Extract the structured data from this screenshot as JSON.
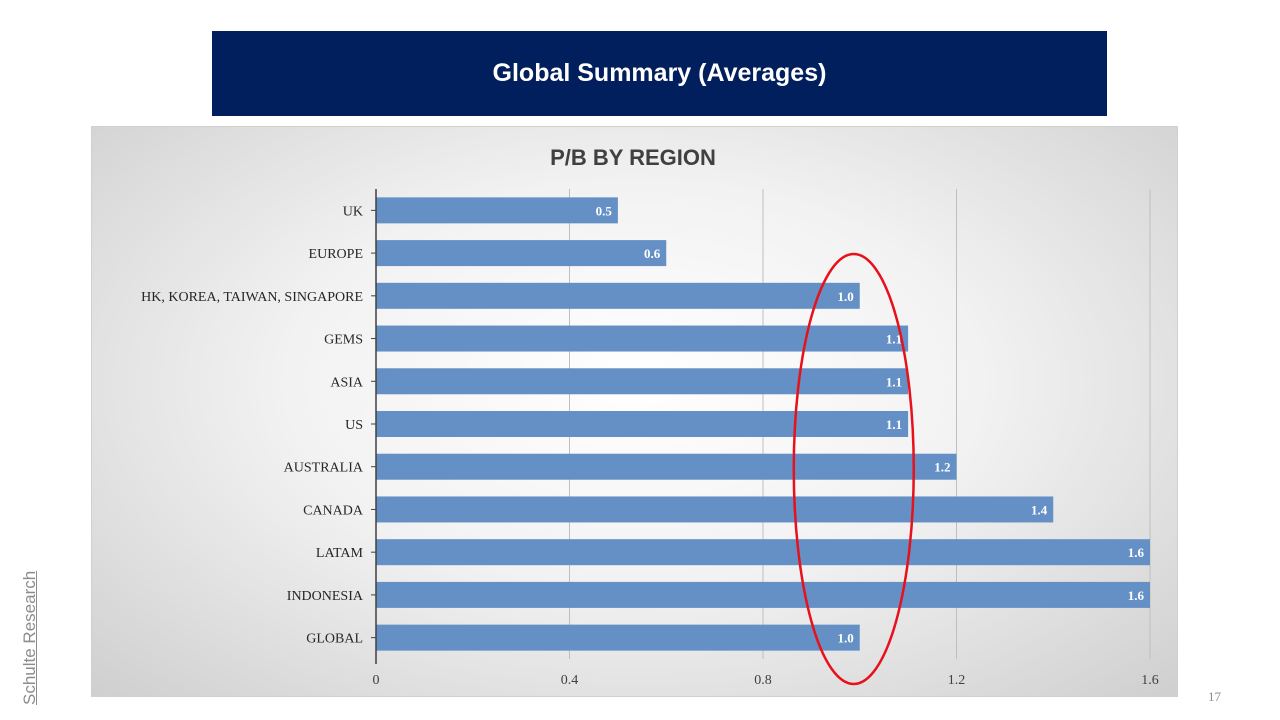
{
  "slide": {
    "title": "Global Summary (Averages)",
    "side_label": "Schulte Research",
    "page_number": "17"
  },
  "colors": {
    "banner": "#001f5c",
    "bar": "#6590c6",
    "highlight_ellipse": "#e8101a"
  },
  "chart_data": {
    "type": "bar",
    "orientation": "horizontal",
    "title": "P/B BY REGION",
    "categories": [
      "UK",
      "EUROPE",
      "HK, KOREA, TAIWAN, SINGAPORE",
      "GEMS",
      "ASIA",
      "US",
      "AUSTRALIA",
      "CANADA",
      "LATAM",
      "INDONESIA",
      "GLOBAL"
    ],
    "values": [
      0.5,
      0.6,
      1.0,
      1.1,
      1.1,
      1.1,
      1.2,
      1.4,
      1.6,
      1.6,
      1.0
    ],
    "data_labels": [
      "0.5",
      "0.6",
      "1.0",
      "1.1",
      "1.1",
      "1.1",
      "1.2",
      "1.4",
      "1.6",
      "1.6",
      "1.0"
    ],
    "xlim": [
      0,
      1.6
    ],
    "xticks": [
      0,
      0.4,
      0.8,
      1.2,
      1.6
    ],
    "xtick_labels": [
      "0",
      "0.4",
      "0.8",
      "1.2",
      "1.6"
    ],
    "xlabel": "",
    "ylabel": "",
    "grid": true,
    "highlight": {
      "shape": "ellipse",
      "center_value": 1.0
    }
  }
}
